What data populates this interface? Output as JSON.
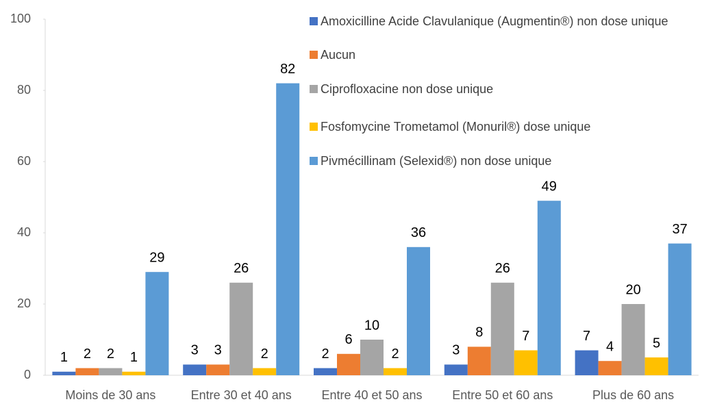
{
  "chart_data": {
    "type": "bar",
    "categories": [
      "Moins de 30 ans",
      "Entre 30 et 40 ans",
      "Entre 40 et 50 ans",
      "Entre 50 et 60 ans",
      "Plus de 60 ans"
    ],
    "series": [
      {
        "name": "Amoxicilline Acide Clavulanique (Augmentin®) non dose unique",
        "color": "#4472c4",
        "values": [
          1,
          3,
          2,
          3,
          7
        ]
      },
      {
        "name": "Aucun",
        "color": "#ed7d31",
        "values": [
          2,
          3,
          6,
          8,
          4
        ]
      },
      {
        "name": "Ciprofloxacine non dose unique",
        "color": "#a5a5a5",
        "values": [
          2,
          26,
          10,
          26,
          20
        ]
      },
      {
        "name": "Fosfomycine Trometamol (Monuril®) dose unique",
        "color": "#ffc000",
        "values": [
          1,
          2,
          2,
          7,
          5
        ]
      },
      {
        "name": "Pivmécillinam (Selexid®) non dose unique",
        "color": "#5b9bd5",
        "values": [
          29,
          82,
          36,
          49,
          37
        ]
      }
    ],
    "ylim": [
      0,
      100
    ],
    "yticks": [
      0,
      20,
      40,
      60,
      80,
      100
    ],
    "grid": false,
    "legend": "top-right"
  }
}
